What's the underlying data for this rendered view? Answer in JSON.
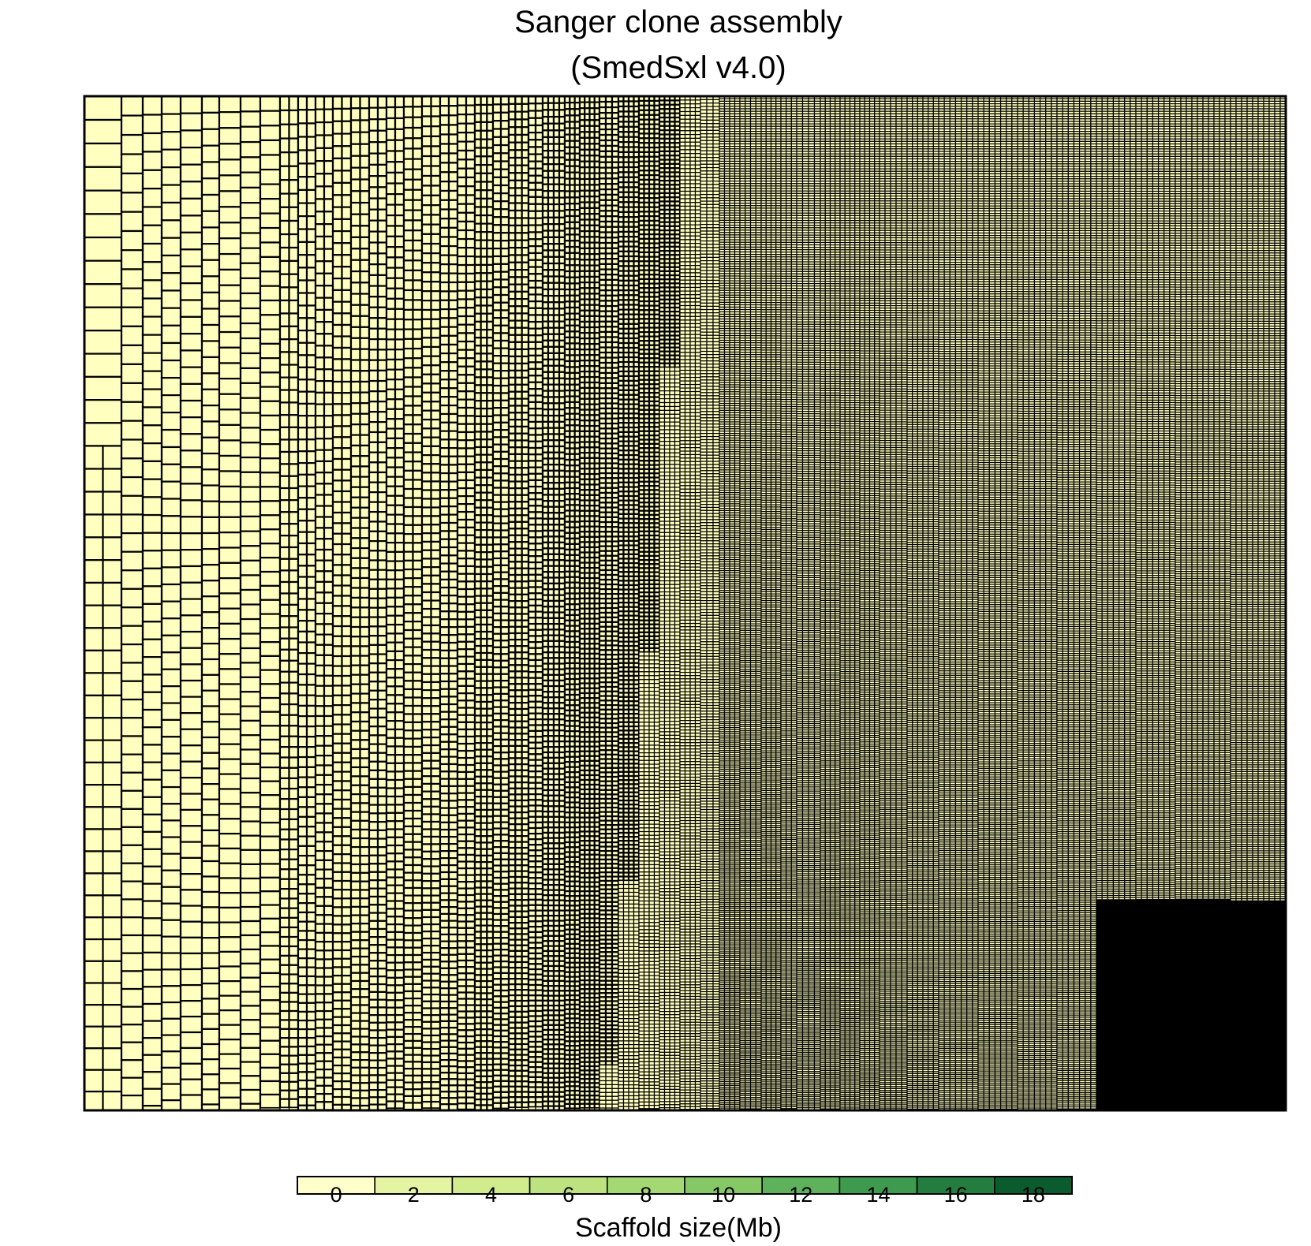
{
  "chart_data": {
    "type": "treemap",
    "title": "Sanger clone assembly",
    "subtitle": "(SmedSxl v4.0)",
    "fill_color": "#FFFFC0",
    "border_color": "#000000",
    "colorbar": {
      "label": "Scaffold size(Mb)",
      "ticks": [
        0,
        2,
        4,
        6,
        8,
        10,
        12,
        14,
        16,
        18
      ],
      "colors": [
        "#FFFFCC",
        "#E4F4A2",
        "#D0EC8C",
        "#BCE37F",
        "#A4D872",
        "#86C866",
        "#5DB25B",
        "#3E9A4E",
        "#237D3E",
        "#0A5C2E"
      ]
    }
  }
}
